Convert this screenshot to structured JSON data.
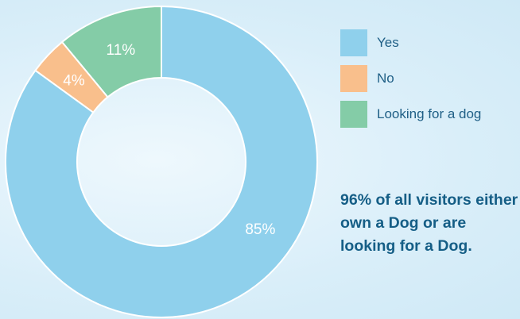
{
  "chart_data": {
    "type": "pie",
    "categories": [
      "Yes",
      "No",
      "Looking for a dog"
    ],
    "values": [
      85,
      4,
      11
    ],
    "value_labels": [
      "85%",
      "4%",
      "11%"
    ],
    "colors": [
      "#8fd0ec",
      "#f9bf8c",
      "#84cca7"
    ],
    "donut": true,
    "legend_position": "right"
  },
  "summary_text": "96% of all visitors either own a Dog or are looking for a Dog."
}
